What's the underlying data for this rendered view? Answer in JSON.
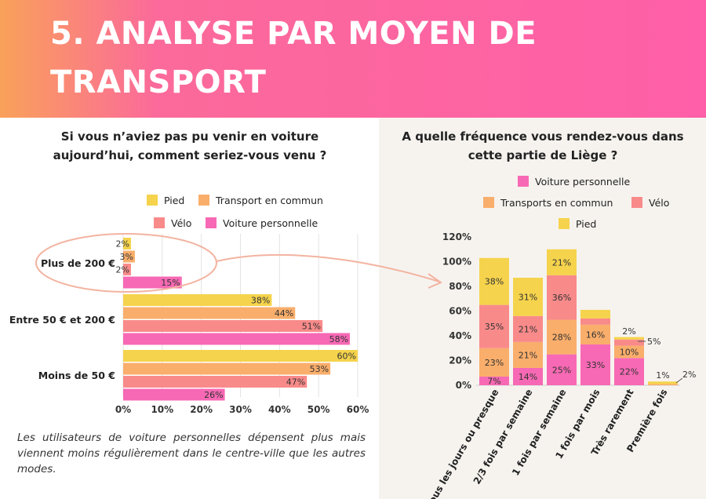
{
  "header": {
    "title": "5. ANALYSE PAR MOYEN DE TRANSPORT"
  },
  "note": "Les utilisateurs de voiture personnelles dépensent plus mais viennent moins régulièrement dans le centre-ville que les autres modes.",
  "colors": {
    "pied": "#f5d34c",
    "transport": "#f9ae6b",
    "velo": "#f98a8a",
    "voiture": "#f769b4",
    "right_panel": "#f6f3ef",
    "circle": "#f3b3a0"
  },
  "chart_data": [
    {
      "type": "bar",
      "orientation": "horizontal",
      "title": "Si vous n’aviez pas pu venir en voiture aujourd’hui, comment seriez-vous venu ?",
      "categories": [
        "Plus de 200 €",
        "Entre 50 € et 200 €",
        "Moins de 50 €"
      ],
      "series": [
        {
          "name": "Pied",
          "values": [
            2,
            38,
            60
          ],
          "labels": [
            "2%",
            "38%",
            "60%"
          ],
          "color": "#f5d34c"
        },
        {
          "name": "Transport en commun",
          "values": [
            3,
            44,
            53
          ],
          "labels": [
            "3%",
            "44%",
            "53%"
          ],
          "color": "#f9ae6b"
        },
        {
          "name": "Vélo",
          "values": [
            2,
            51,
            47
          ],
          "labels": [
            "2%",
            "51%",
            "47%"
          ],
          "color": "#f98a8a"
        },
        {
          "name": "Voiture personnelle",
          "values": [
            15,
            58,
            26
          ],
          "labels": [
            "15%",
            "58%",
            "26%"
          ],
          "color": "#f769b4"
        }
      ],
      "xlim": [
        0,
        60
      ],
      "xticks": [
        "0%",
        "10%",
        "20%",
        "30%",
        "40%",
        "50%",
        "60%"
      ],
      "grid": true,
      "legend": "top",
      "highlight": "Plus de 200 €"
    },
    {
      "type": "bar",
      "stacked": true,
      "title": "A quelle fréquence vous rendez-vous dans cette partie de Liège ?",
      "categories": [
        "Tous les jours ou presque",
        "2/3 fois par semaine",
        "1 fois par semaine",
        "1 fois par mois",
        "Très rarement",
        "Première fois"
      ],
      "series": [
        {
          "name": "Voiture personnelle",
          "values": [
            7,
            14,
            25,
            33,
            22,
            0
          ],
          "labels": [
            "7%",
            "14%",
            "25%",
            "33%",
            "22%",
            ""
          ],
          "color": "#f769b4"
        },
        {
          "name": "Transports en commun",
          "values": [
            23,
            21,
            28,
            16,
            10,
            1
          ],
          "labels": [
            "23%",
            "21%",
            "28%",
            "16%",
            "10%",
            "1%"
          ],
          "color": "#f9ae6b"
        },
        {
          "name": "Vélo",
          "values": [
            35,
            21,
            36,
            5,
            5,
            0
          ],
          "labels": [
            "35%",
            "21%",
            "36%",
            "",
            "5%",
            ""
          ],
          "color": "#f98a8a"
        },
        {
          "name": "Pied",
          "values": [
            38,
            31,
            21,
            7,
            2,
            2
          ],
          "labels": [
            "38%",
            "31%",
            "21%",
            "",
            "2%",
            "2%"
          ],
          "color": "#f5d34c"
        }
      ],
      "ylim": [
        0,
        120
      ],
      "yticks": [
        "0%",
        "20%",
        "40%",
        "60%",
        "80%",
        "100%",
        "120%"
      ],
      "legend": "top"
    }
  ]
}
